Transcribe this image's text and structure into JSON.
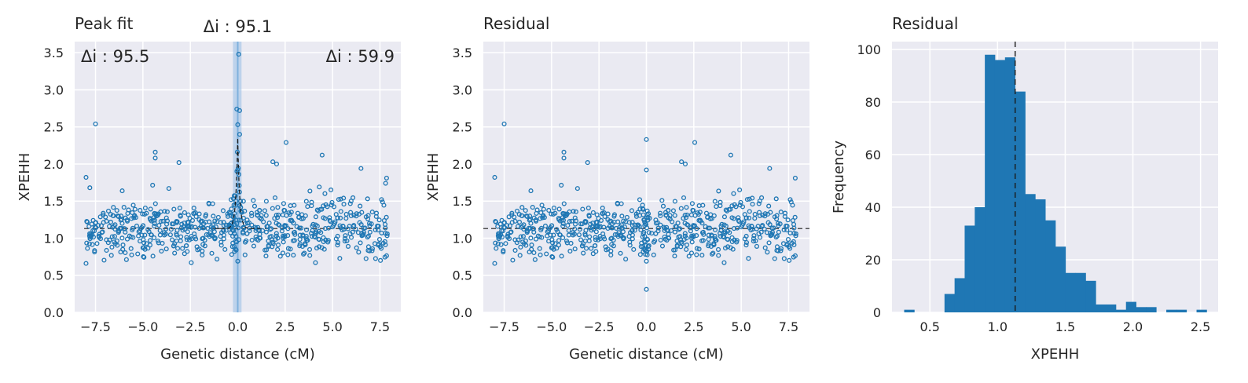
{
  "chart_data": [
    {
      "type": "scatter",
      "title": "Peak fit",
      "xlabel": "Genetic distance (cM)",
      "ylabel": "XPEHH",
      "xlim": [
        -8.6,
        8.6
      ],
      "ylim": [
        0,
        3.65
      ],
      "xticks": [
        -7.5,
        -5.0,
        -2.5,
        0.0,
        2.5,
        5.0,
        7.5
      ],
      "xtick_labels": [
        "−7.5",
        "−5.0",
        "−2.5",
        "0.0",
        "2.5",
        "5.0",
        "7.5"
      ],
      "yticks": [
        0,
        0.5,
        1.0,
        1.5,
        2.0,
        2.5,
        3.0,
        3.5
      ],
      "ytick_labels": [
        "0.0",
        "0.5",
        "1.0",
        "1.5",
        "2.0",
        "2.5",
        "3.0",
        "3.5"
      ],
      "grid": true,
      "baseline": 1.13,
      "peak_center": 0.0,
      "peak_band": [
        -0.25,
        0.2
      ],
      "annotations": [
        {
          "text": "Δi : 95.5",
          "position": "top-left"
        },
        {
          "text": "Δi : 95.1",
          "position": "top-center"
        },
        {
          "text": "Δi : 59.9",
          "position": "top-right"
        }
      ],
      "point_color": "#1f77b4",
      "outliers": [
        {
          "x": -7.5,
          "y": 2.54
        },
        {
          "x": 0.05,
          "y": 3.48
        },
        {
          "x": -0.05,
          "y": 2.74
        },
        {
          "x": 0.1,
          "y": 2.72
        },
        {
          "x": 0.1,
          "y": 2.4
        },
        {
          "x": 2.55,
          "y": 2.29
        },
        {
          "x": -4.35,
          "y": 2.16
        },
        {
          "x": 4.45,
          "y": 2.12
        },
        {
          "x": -4.35,
          "y": 2.08
        },
        {
          "x": -3.1,
          "y": 2.02
        },
        {
          "x": 1.85,
          "y": 2.03
        },
        {
          "x": 2.05,
          "y": 2.0
        },
        {
          "x": 6.5,
          "y": 1.94
        },
        {
          "x": -8.0,
          "y": 1.82
        },
        {
          "x": 7.85,
          "y": 1.81
        },
        {
          "x": 7.8,
          "y": 1.74
        },
        {
          "x": 0.0,
          "y": 1.92
        },
        {
          "x": -7.8,
          "y": 1.68
        },
        {
          "x": 4.3,
          "y": 1.69
        },
        {
          "x": -8.0,
          "y": 0.66
        },
        {
          "x": 4.1,
          "y": 0.67
        },
        {
          "x": 0.0,
          "y": 0.69
        },
        {
          "x": -2.45,
          "y": 0.67
        }
      ]
    },
    {
      "type": "scatter",
      "title": "Residual",
      "xlabel": "Genetic distance (cM)",
      "ylabel": "XPEHH",
      "xlim": [
        -8.6,
        8.6
      ],
      "ylim": [
        0,
        3.65
      ],
      "xticks": [
        -7.5,
        -5.0,
        -2.5,
        0.0,
        2.5,
        5.0,
        7.5
      ],
      "xtick_labels": [
        "−7.5",
        "−5.0",
        "−2.5",
        "0.0",
        "2.5",
        "5.0",
        "7.5"
      ],
      "yticks": [
        0,
        0.5,
        1.0,
        1.5,
        2.0,
        2.5,
        3.0,
        3.5
      ],
      "ytick_labels": [
        "0.0",
        "0.5",
        "1.0",
        "1.5",
        "2.0",
        "2.5",
        "3.0",
        "3.5"
      ],
      "grid": true,
      "baseline": 1.13,
      "point_color": "#1f77b4",
      "outliers": [
        {
          "x": -7.5,
          "y": 2.54
        },
        {
          "x": 0.0,
          "y": 2.33
        },
        {
          "x": 2.55,
          "y": 2.29
        },
        {
          "x": -4.35,
          "y": 2.16
        },
        {
          "x": 4.45,
          "y": 2.12
        },
        {
          "x": -4.35,
          "y": 2.08
        },
        {
          "x": -3.1,
          "y": 2.02
        },
        {
          "x": 1.85,
          "y": 2.03
        },
        {
          "x": 2.05,
          "y": 2.0
        },
        {
          "x": 6.5,
          "y": 1.94
        },
        {
          "x": 0.0,
          "y": 1.92
        },
        {
          "x": -8.0,
          "y": 1.82
        },
        {
          "x": 7.85,
          "y": 1.81
        },
        {
          "x": 0.0,
          "y": 0.31
        },
        {
          "x": -8.0,
          "y": 0.66
        },
        {
          "x": 4.1,
          "y": 0.67
        },
        {
          "x": 0.0,
          "y": 0.69
        }
      ]
    },
    {
      "type": "bar",
      "title": "Residual",
      "xlabel": "XPEHH",
      "ylabel": "Frequency",
      "xlim": [
        0.22,
        2.63
      ],
      "ylim": [
        0,
        103
      ],
      "xticks": [
        0.5,
        1.0,
        1.5,
        2.0,
        2.5
      ],
      "xtick_labels": [
        "0.5",
        "1.0",
        "1.5",
        "2.0",
        "2.5"
      ],
      "yticks": [
        0,
        20,
        40,
        60,
        80,
        100
      ],
      "ytick_labels": [
        "0",
        "20",
        "40",
        "60",
        "80",
        "100"
      ],
      "grid": true,
      "bar_color": "#1f77b4",
      "vline": 1.13,
      "bin_start": 0.31,
      "bin_width": 0.0745,
      "values": [
        1,
        0,
        0,
        0,
        7,
        13,
        33,
        40,
        98,
        96,
        97,
        84,
        45,
        43,
        35,
        25,
        15,
        15,
        12,
        3,
        3,
        1,
        4,
        2,
        2,
        0,
        1,
        1,
        0,
        1
      ]
    }
  ]
}
